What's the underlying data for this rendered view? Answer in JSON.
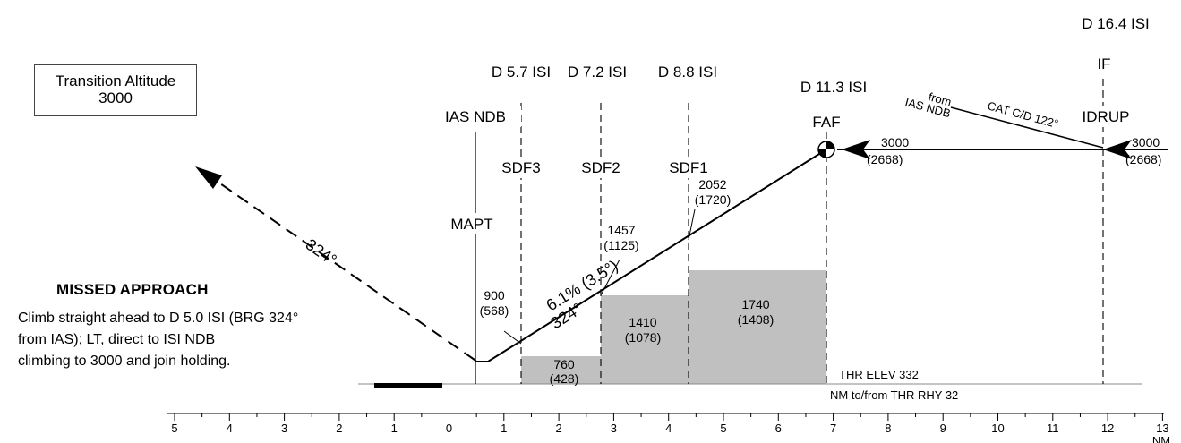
{
  "transition_altitude": {
    "title": "Transition Altitude",
    "value": "3000"
  },
  "missed_approach": {
    "title": "MISSED APPROACH",
    "lines": [
      "Climb straight ahead to D 5.0 ISI (BRG 324°",
      "from IAS); LT, direct to ISI NDB",
      "climbing to 3000 and join holding."
    ]
  },
  "fixes": {
    "sdf3": {
      "dme": "D 5.7 ISI",
      "name": "SDF3"
    },
    "sdf2": {
      "dme": "D 7.2 ISI",
      "name": "SDF2"
    },
    "sdf1": {
      "dme": "D 8.8 ISI",
      "name": "SDF1"
    },
    "faf": {
      "dme": "D 11.3 ISI",
      "name": "FAF"
    },
    "if": {
      "dme": "D 16.4 ISI",
      "name": "IF"
    },
    "idrup": {
      "name": "IDRUP"
    },
    "mapt": {
      "name": "MAPT"
    },
    "ndb": {
      "name": "IAS NDB"
    }
  },
  "altitudes": {
    "path_900": {
      "alt": "900",
      "height": "(568)"
    },
    "path_1457": {
      "alt": "1457",
      "height": "(1125)"
    },
    "path_2052": {
      "alt": "2052",
      "height": "(1720)"
    },
    "faf_alt": {
      "alt": "3000",
      "height": "(2668)"
    },
    "if_alt": {
      "alt": "3000",
      "height": "(2668)"
    }
  },
  "obstacle_blocks": [
    {
      "alt": "760",
      "height": "(428)"
    },
    {
      "alt": "1410",
      "height": "(1078)"
    },
    {
      "alt": "1740",
      "height": "(1408)"
    }
  ],
  "glidepath": {
    "gradient": "6.1% (3.5°)",
    "track": "324°"
  },
  "missed_track": "324°",
  "entry_track": {
    "from_line1": "from",
    "from_line2": "IAS NDB",
    "cat": "CAT C/D 122°"
  },
  "thr_elev": "THR ELEV 332",
  "nm_label": "NM to/from THR RHY 32",
  "nm_unit": "NM",
  "scale": {
    "nm_min": -5,
    "nm_max": 13,
    "ticks": [
      "5",
      "4",
      "3",
      "2",
      "1",
      "0",
      "1",
      "2",
      "3",
      "4",
      "5",
      "6",
      "7",
      "8",
      "9",
      "10",
      "11",
      "12",
      "13"
    ]
  },
  "colors": {
    "obstacle_fill": "#c0c0c0",
    "line": "#000000",
    "runway": "#000000"
  }
}
